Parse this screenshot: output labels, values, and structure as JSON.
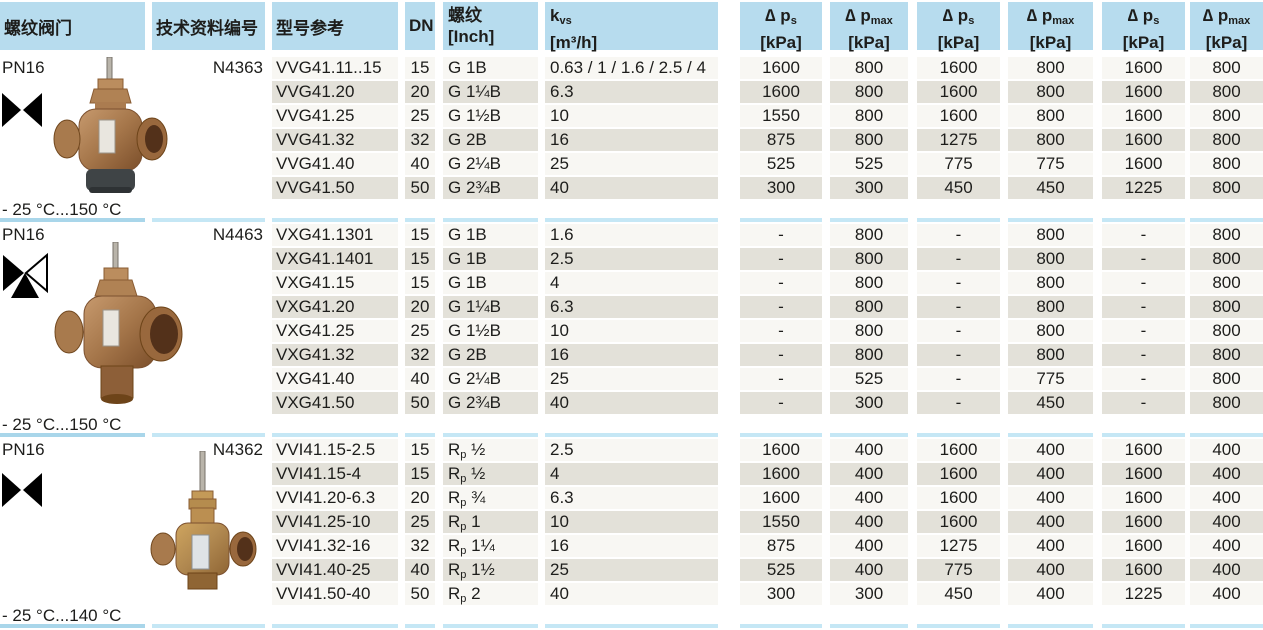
{
  "header": {
    "valve": "螺纹阀门",
    "tech": "技术资料编号",
    "model": "型号参考",
    "dn": "DN",
    "thread_line1": "螺纹",
    "thread_line2": "[Inch]",
    "kvs_base": "k",
    "kvs_sub": "vs",
    "kvs_unit": "[m³/h]",
    "pressure_cols": [
      {
        "symbol": "∆ p",
        "sub": "s",
        "unit": "[kPa]"
      },
      {
        "symbol": "∆ p",
        "sub": "max",
        "unit": "[kPa]"
      },
      {
        "symbol": "∆ p",
        "sub": "s",
        "unit": "[kPa]"
      },
      {
        "symbol": "∆ p",
        "sub": "max",
        "unit": "[kPa]"
      },
      {
        "symbol": "∆ p",
        "sub": "s",
        "unit": "[kPa]"
      },
      {
        "symbol": "∆ p",
        "sub": "max",
        "unit": "[kPa]"
      }
    ]
  },
  "colors": {
    "header_bg": "#b7dcee",
    "row_bg": "#f8f7f3",
    "row_alt_bg": "#e3e1d9",
    "separator": "#c5e7f5",
    "separator_first": "#a9d6ea",
    "text": "#1d1d1b"
  },
  "sections": [
    {
      "pn": "PN16",
      "valve_icon": "two-way-valve-icon",
      "valve_photo": "bronze-globe-valve-2port-photo",
      "tech_number": "N4363",
      "temp_range": "- 25 °C...150 °C",
      "rows": [
        {
          "model": "VVG41.11..15",
          "dn": "15",
          "thread": {
            "pre": "G 1B",
            "sub": "",
            "post": ""
          },
          "kvs": "0.63 / 1 / 1.6 / 2.5 / 4",
          "pressures": [
            "1600",
            "800",
            "1600",
            "800",
            "1600",
            "800"
          ]
        },
        {
          "model": "VVG41.20",
          "dn": "20",
          "thread": {
            "pre": "G 1¼B",
            "sub": "",
            "post": ""
          },
          "kvs": "6.3",
          "pressures": [
            "1600",
            "800",
            "1600",
            "800",
            "1600",
            "800"
          ]
        },
        {
          "model": "VVG41.25",
          "dn": "25",
          "thread": {
            "pre": "G 1½B",
            "sub": "",
            "post": ""
          },
          "kvs": "10",
          "pressures": [
            "1550",
            "800",
            "1600",
            "800",
            "1600",
            "800"
          ]
        },
        {
          "model": "VVG41.32",
          "dn": "32",
          "thread": {
            "pre": "G 2B",
            "sub": "",
            "post": ""
          },
          "kvs": "16",
          "pressures": [
            "875",
            "800",
            "1275",
            "800",
            "1600",
            "800"
          ]
        },
        {
          "model": "VVG41.40",
          "dn": "40",
          "thread": {
            "pre": "G 2¼B",
            "sub": "",
            "post": ""
          },
          "kvs": "25",
          "pressures": [
            "525",
            "525",
            "775",
            "775",
            "1600",
            "800"
          ]
        },
        {
          "model": "VVG41.50",
          "dn": "50",
          "thread": {
            "pre": "G 2¾B",
            "sub": "",
            "post": ""
          },
          "kvs": "40",
          "pressures": [
            "300",
            "300",
            "450",
            "450",
            "1225",
            "800"
          ]
        }
      ]
    },
    {
      "pn": "PN16",
      "valve_icon": "three-way-valve-icon",
      "valve_photo": "bronze-globe-valve-3port-photo",
      "tech_number": "N4463",
      "temp_range": "- 25 °C...150 °C",
      "rows": [
        {
          "model": "VXG41.1301",
          "dn": "15",
          "thread": {
            "pre": "G 1B",
            "sub": "",
            "post": ""
          },
          "kvs": "1.6",
          "pressures": [
            "-",
            "800",
            "-",
            "800",
            "-",
            "800"
          ]
        },
        {
          "model": "VXG41.1401",
          "dn": "15",
          "thread": {
            "pre": "G 1B",
            "sub": "",
            "post": ""
          },
          "kvs": "2.5",
          "pressures": [
            "-",
            "800",
            "-",
            "800",
            "-",
            "800"
          ]
        },
        {
          "model": "VXG41.15",
          "dn": "15",
          "thread": {
            "pre": "G 1B",
            "sub": "",
            "post": ""
          },
          "kvs": "4",
          "pressures": [
            "-",
            "800",
            "-",
            "800",
            "-",
            "800"
          ]
        },
        {
          "model": "VXG41.20",
          "dn": "20",
          "thread": {
            "pre": "G 1¼B",
            "sub": "",
            "post": ""
          },
          "kvs": "6.3",
          "pressures": [
            "-",
            "800",
            "-",
            "800",
            "-",
            "800"
          ]
        },
        {
          "model": "VXG41.25",
          "dn": "25",
          "thread": {
            "pre": "G 1½B",
            "sub": "",
            "post": ""
          },
          "kvs": "10",
          "pressures": [
            "-",
            "800",
            "-",
            "800",
            "-",
            "800"
          ]
        },
        {
          "model": "VXG41.32",
          "dn": "32",
          "thread": {
            "pre": "G 2B",
            "sub": "",
            "post": ""
          },
          "kvs": "16",
          "pressures": [
            "-",
            "800",
            "-",
            "800",
            "-",
            "800"
          ]
        },
        {
          "model": "VXG41.40",
          "dn": "40",
          "thread": {
            "pre": "G 2¼B",
            "sub": "",
            "post": ""
          },
          "kvs": "25",
          "pressures": [
            "-",
            "525",
            "-",
            "775",
            "-",
            "800"
          ]
        },
        {
          "model": "VXG41.50",
          "dn": "50",
          "thread": {
            "pre": "G 2¾B",
            "sub": "",
            "post": ""
          },
          "kvs": "40",
          "pressures": [
            "-",
            "300",
            "-",
            "450",
            "-",
            "800"
          ]
        }
      ]
    },
    {
      "pn": "PN16",
      "valve_icon": "two-way-valve-icon",
      "valve_photo": "brass-globe-valve-tall-photo",
      "tech_number": "N4362",
      "temp_range": "- 25 °C...140 °C",
      "rows": [
        {
          "model": "VVI41.15-2.5",
          "dn": "15",
          "thread": {
            "pre": "R",
            "sub": "p",
            "post": " ½"
          },
          "kvs": "2.5",
          "pressures": [
            "1600",
            "400",
            "1600",
            "400",
            "1600",
            "400"
          ]
        },
        {
          "model": "VVI41.15-4",
          "dn": "15",
          "thread": {
            "pre": "R",
            "sub": "p",
            "post": " ½"
          },
          "kvs": "4",
          "pressures": [
            "1600",
            "400",
            "1600",
            "400",
            "1600",
            "400"
          ]
        },
        {
          "model": "VVI41.20-6.3",
          "dn": "20",
          "thread": {
            "pre": "R",
            "sub": "p",
            "post": " ¾"
          },
          "kvs": "6.3",
          "pressures": [
            "1600",
            "400",
            "1600",
            "400",
            "1600",
            "400"
          ]
        },
        {
          "model": "VVI41.25-10",
          "dn": "25",
          "thread": {
            "pre": "R",
            "sub": "p",
            "post": " 1"
          },
          "kvs": "10",
          "pressures": [
            "1550",
            "400",
            "1600",
            "400",
            "1600",
            "400"
          ]
        },
        {
          "model": "VVI41.32-16",
          "dn": "32",
          "thread": {
            "pre": "R",
            "sub": "p",
            "post": " 1¼"
          },
          "kvs": "16",
          "pressures": [
            "875",
            "400",
            "1275",
            "400",
            "1600",
            "400"
          ]
        },
        {
          "model": "VVI41.40-25",
          "dn": "40",
          "thread": {
            "pre": "R",
            "sub": "p",
            "post": " 1½"
          },
          "kvs": "25",
          "pressures": [
            "525",
            "400",
            "775",
            "400",
            "1600",
            "400"
          ]
        },
        {
          "model": "VVI41.50-40",
          "dn": "50",
          "thread": {
            "pre": "R",
            "sub": "p",
            "post": " 2"
          },
          "kvs": "40",
          "pressures": [
            "300",
            "300",
            "450",
            "400",
            "1225",
            "400"
          ]
        }
      ]
    }
  ]
}
